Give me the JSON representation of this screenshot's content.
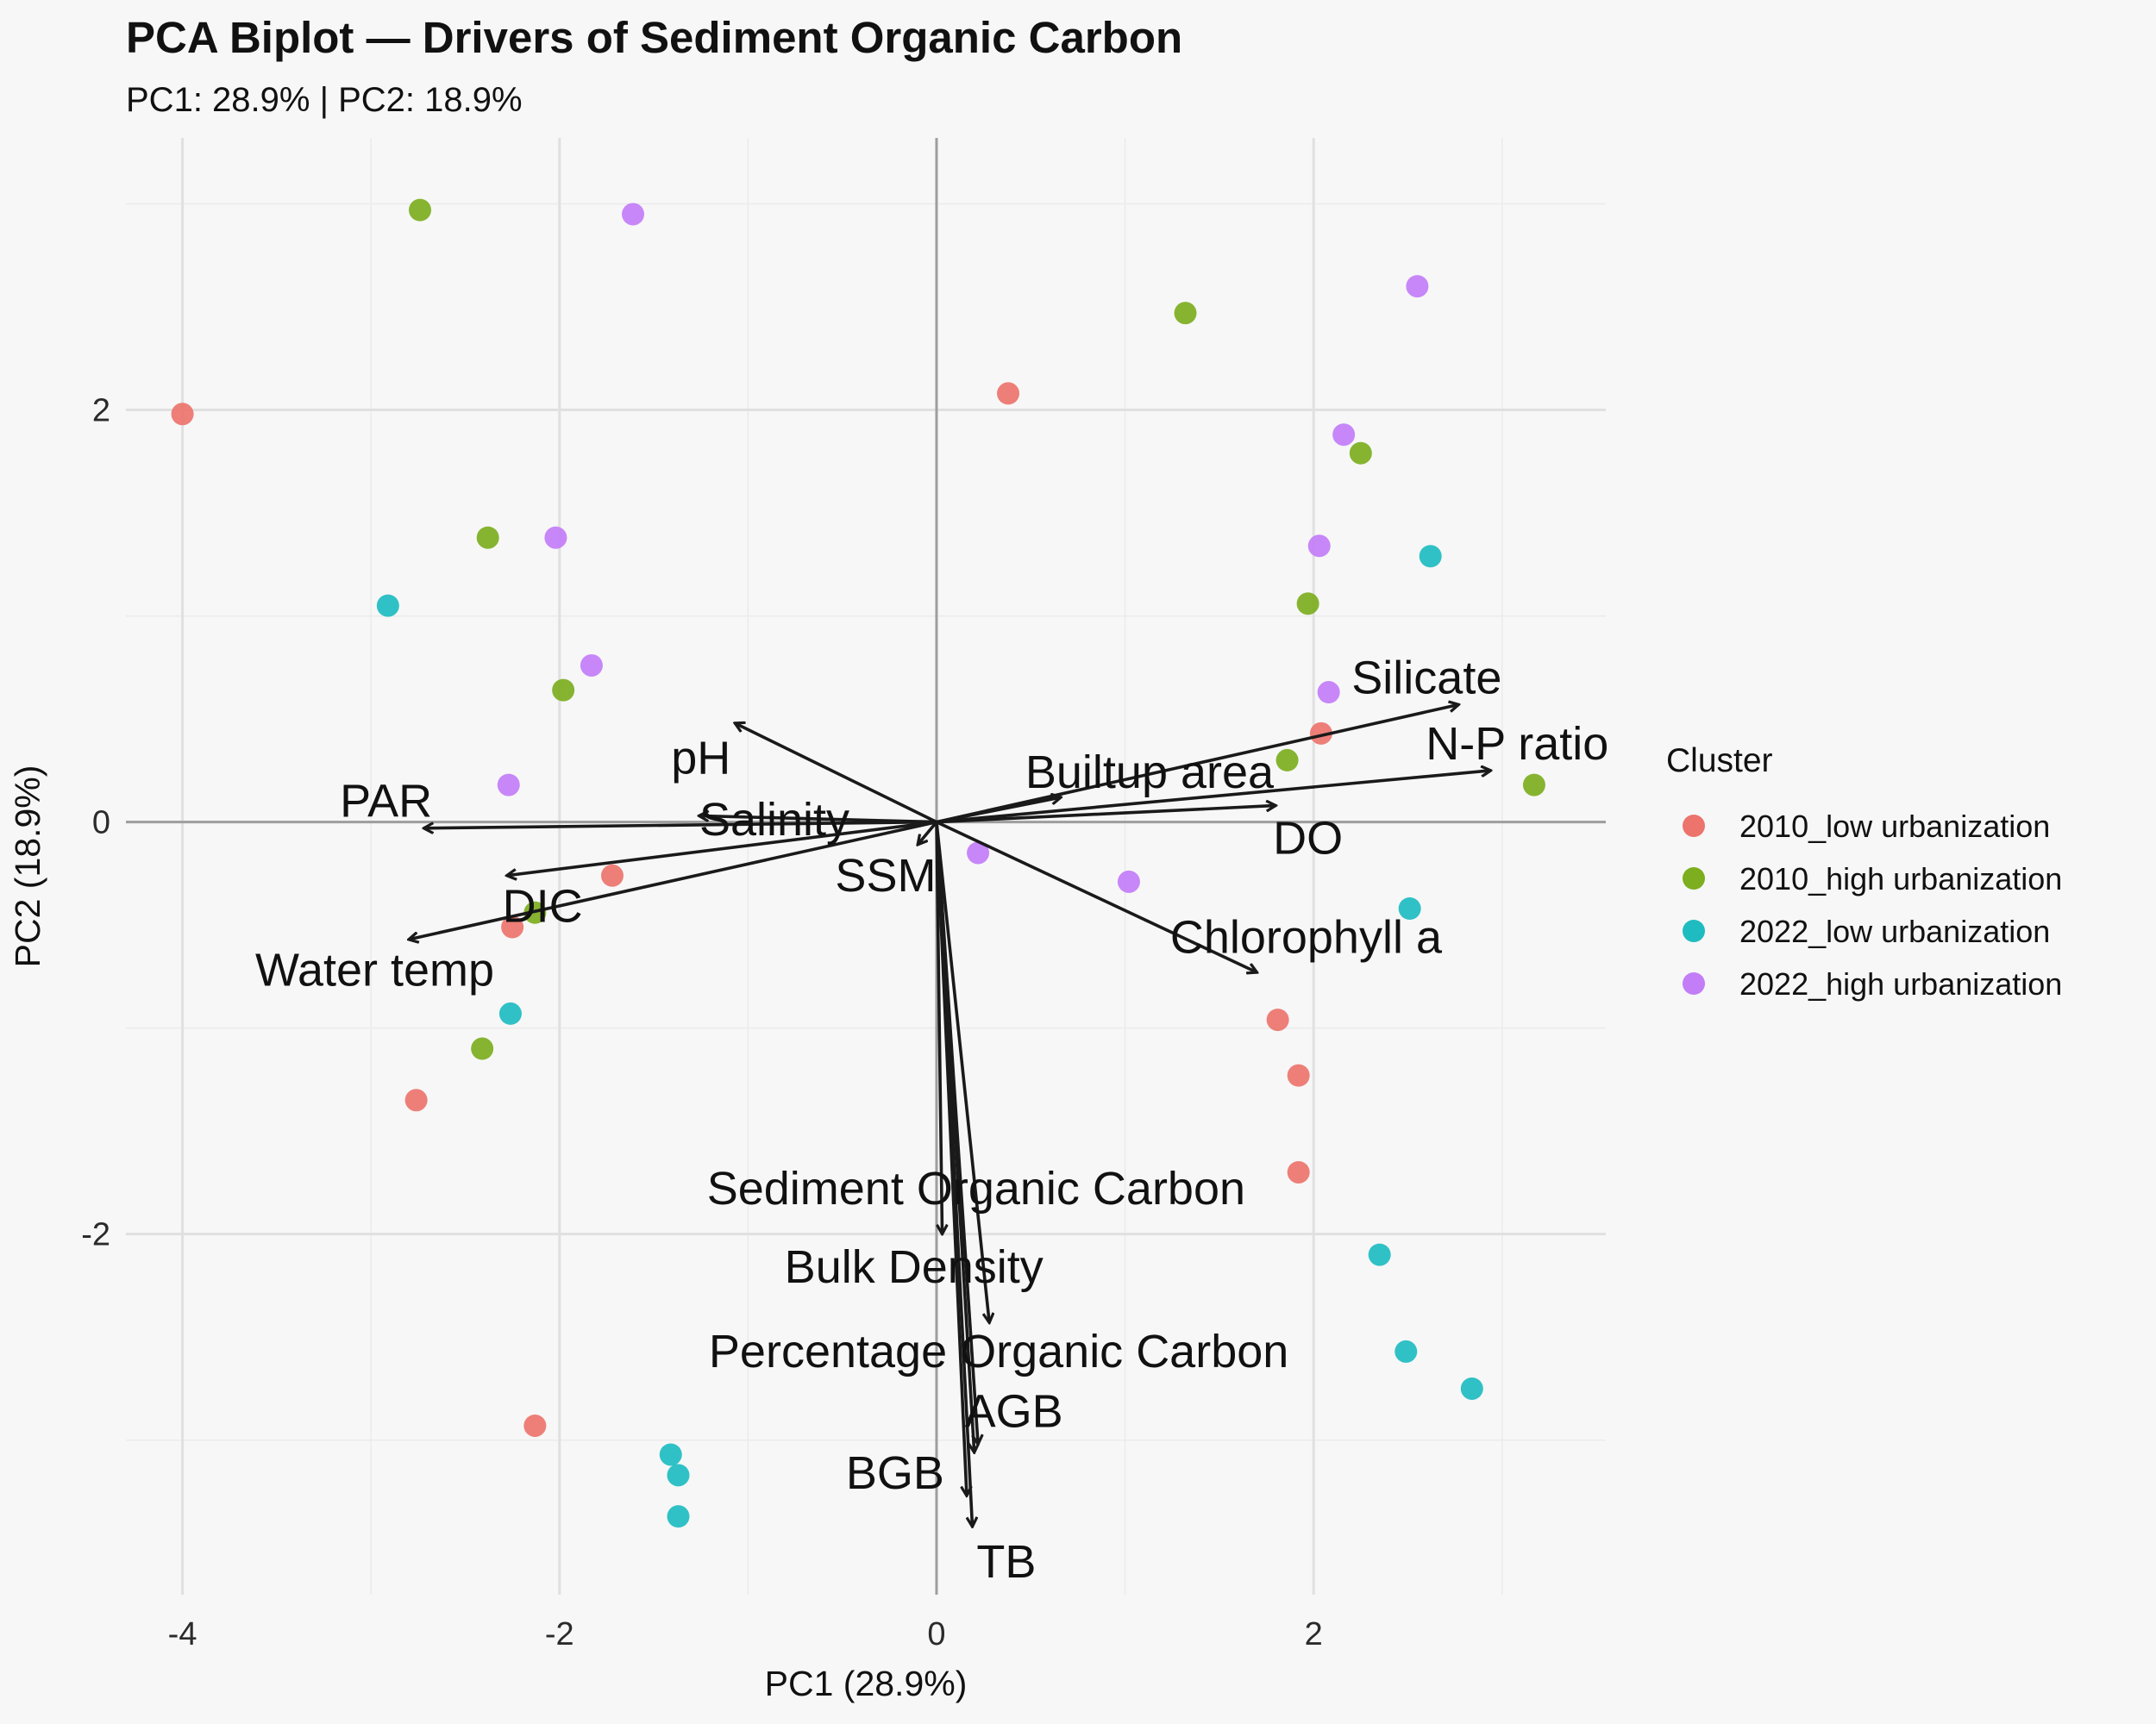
{
  "title": "PCA Biplot — Drivers of Sediment Organic Carbon",
  "subtitle": "PC1: 28.9% | PC2: 18.9%",
  "chart_data": {
    "type": "scatter",
    "xlabel": "PC1 (28.9%)",
    "ylabel": "PC2 (18.9%)",
    "xlim": [
      -4.3,
      3.55
    ],
    "ylim": [
      -3.75,
      3.32
    ],
    "xticks": [
      -4,
      -2,
      0,
      2
    ],
    "yticks": [
      -2,
      0,
      2
    ],
    "grid": true,
    "legend": {
      "title": "Cluster",
      "position": "right"
    },
    "series": [
      {
        "name": "2010_low urbanization",
        "color": "#ec746c",
        "points": [
          [
            -4.0,
            1.98
          ],
          [
            0.38,
            2.08
          ],
          [
            -1.72,
            -0.26
          ],
          [
            -2.25,
            -0.51
          ],
          [
            -2.76,
            -1.35
          ],
          [
            2.04,
            0.43
          ],
          [
            1.81,
            -0.96
          ],
          [
            1.92,
            -1.23
          ],
          [
            1.92,
            -1.7
          ],
          [
            -2.13,
            -2.93
          ]
        ]
      },
      {
        "name": "2010_high urbanization",
        "color": "#7cae1f",
        "points": [
          [
            -2.74,
            2.97
          ],
          [
            1.32,
            2.47
          ],
          [
            -2.38,
            1.38
          ],
          [
            2.25,
            1.79
          ],
          [
            1.97,
            1.06
          ],
          [
            -1.98,
            0.64
          ],
          [
            1.86,
            0.3
          ],
          [
            3.17,
            0.18
          ],
          [
            -2.13,
            -0.44
          ],
          [
            -2.41,
            -1.1
          ]
        ]
      },
      {
        "name": "2022_low urbanization",
        "color": "#1ebcc1",
        "points": [
          [
            -2.91,
            1.05
          ],
          [
            2.62,
            1.29
          ],
          [
            -2.26,
            -0.93
          ],
          [
            2.51,
            -0.42
          ],
          [
            2.35,
            -2.1
          ],
          [
            2.49,
            -2.57
          ],
          [
            2.84,
            -2.75
          ],
          [
            -1.41,
            -3.07
          ],
          [
            -1.37,
            -3.17
          ],
          [
            -1.37,
            -3.37
          ]
        ]
      },
      {
        "name": "2022_high urbanization",
        "color": "#c27df7",
        "points": [
          [
            -1.61,
            2.95
          ],
          [
            2.55,
            2.6
          ],
          [
            2.16,
            1.88
          ],
          [
            -2.02,
            1.38
          ],
          [
            2.03,
            1.34
          ],
          [
            -1.83,
            0.76
          ],
          [
            2.08,
            0.63
          ],
          [
            -2.27,
            0.18
          ],
          [
            0.22,
            -0.15
          ],
          [
            1.02,
            -0.29
          ]
        ]
      }
    ],
    "loadings": [
      {
        "name": "Silicate",
        "end": [
          2.77,
          0.57
        ],
        "label": [
          2.6,
          0.7
        ]
      },
      {
        "name": "N-P ratio",
        "end": [
          2.94,
          0.25
        ],
        "label": [
          3.08,
          0.38
        ]
      },
      {
        "name": "Builtup area",
        "end": [
          0.66,
          0.12
        ],
        "label": [
          1.13,
          0.24
        ]
      },
      {
        "name": "DO",
        "end": [
          1.8,
          0.08
        ],
        "label": [
          1.97,
          -0.08
        ]
      },
      {
        "name": "Chlorophyll a",
        "end": [
          1.7,
          -0.73
        ],
        "label": [
          1.96,
          -0.56
        ]
      },
      {
        "name": "pH",
        "end": [
          -1.07,
          0.48
        ],
        "label": [
          -1.25,
          0.31
        ]
      },
      {
        "name": "Salinity",
        "end": [
          -1.26,
          0.03
        ],
        "label": [
          -0.86,
          0.01
        ]
      },
      {
        "name": "SSM",
        "end": [
          -0.1,
          -0.11
        ],
        "label": [
          -0.27,
          -0.26
        ]
      },
      {
        "name": "PAR",
        "end": [
          -2.72,
          -0.03
        ],
        "label": [
          -2.92,
          0.1
        ]
      },
      {
        "name": "DIC",
        "end": [
          -2.28,
          -0.26
        ],
        "label": [
          -2.09,
          -0.41
        ]
      },
      {
        "name": "Water temp",
        "end": [
          -2.8,
          -0.57
        ],
        "label": [
          -2.98,
          -0.72
        ]
      },
      {
        "name": "Sediment Organic Carbon",
        "end": [
          0.03,
          -2.0
        ],
        "label": [
          0.21,
          -1.78
        ]
      },
      {
        "name": "Bulk Density",
        "end": [
          0.28,
          -2.43
        ],
        "label": [
          -0.12,
          -2.16
        ]
      },
      {
        "name": "Percentage Organic Carbon",
        "end": [
          0.22,
          -3.02
        ],
        "label": [
          0.33,
          -2.57
        ]
      },
      {
        "name": "AGB",
        "end": [
          0.2,
          -3.06
        ],
        "label": [
          0.41,
          -2.86
        ]
      },
      {
        "name": "BGB",
        "end": [
          0.16,
          -3.27
        ],
        "label": [
          -0.22,
          -3.16
        ]
      },
      {
        "name": "TB",
        "end": [
          0.19,
          -3.42
        ],
        "label": [
          0.37,
          -3.59
        ]
      }
    ]
  }
}
